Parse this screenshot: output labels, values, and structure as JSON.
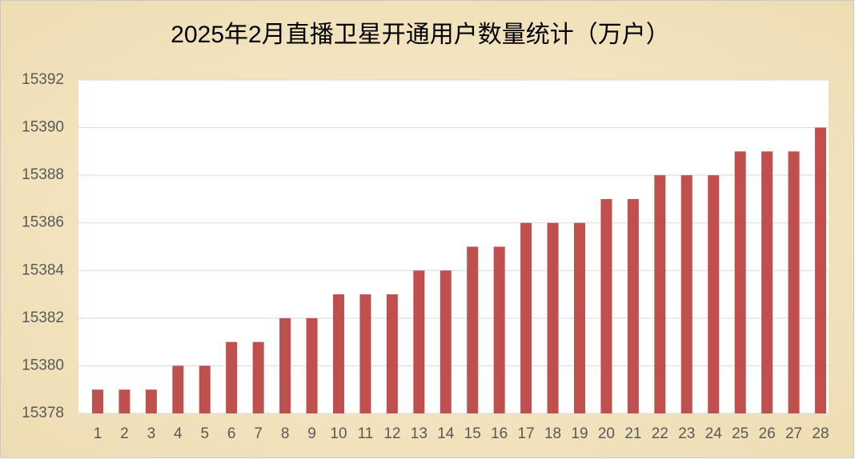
{
  "chart_data": {
    "type": "bar",
    "title": "2025年2月直播卫星开通用户数量统计（万户）",
    "categories": [
      "1",
      "2",
      "3",
      "4",
      "5",
      "6",
      "7",
      "8",
      "9",
      "10",
      "11",
      "12",
      "13",
      "14",
      "15",
      "16",
      "17",
      "18",
      "19",
      "20",
      "21",
      "22",
      "23",
      "24",
      "25",
      "26",
      "27",
      "28"
    ],
    "values": [
      15379,
      15379,
      15379,
      15380,
      15380,
      15381,
      15381,
      15382,
      15382,
      15383,
      15383,
      15383,
      15384,
      15384,
      15385,
      15385,
      15386,
      15386,
      15386,
      15387,
      15387,
      15388,
      15388,
      15388,
      15389,
      15389,
      15389,
      15390
    ],
    "color": "#c0504d",
    "ylim": [
      15378,
      15392
    ],
    "yticks": [
      15378,
      15380,
      15382,
      15384,
      15386,
      15388,
      15390,
      15392
    ],
    "grid": true
  }
}
